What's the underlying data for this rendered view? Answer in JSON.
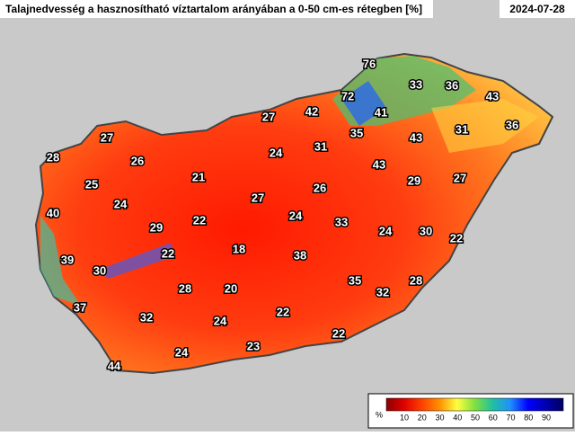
{
  "header": {
    "title": "Talajnedvesség a hasznosítható víztartalom arányában a 0-50 cm-es rétegben [%]",
    "date": "2024-07-28"
  },
  "legend": {
    "unit": "%",
    "ticks": [
      10,
      20,
      30,
      40,
      50,
      60,
      70,
      80,
      90
    ]
  },
  "stations": [
    76,
    33,
    36,
    43,
    72,
    42,
    41,
    27,
    35,
    36,
    31,
    43,
    27,
    26,
    31,
    24,
    28,
    21,
    43,
    25,
    29,
    27,
    26,
    24,
    27,
    40,
    22,
    24,
    33,
    29,
    24,
    30,
    22,
    18,
    22,
    38,
    39,
    30,
    35,
    28,
    28,
    20,
    32,
    37,
    32,
    22,
    24,
    22,
    23,
    24,
    44
  ]
}
